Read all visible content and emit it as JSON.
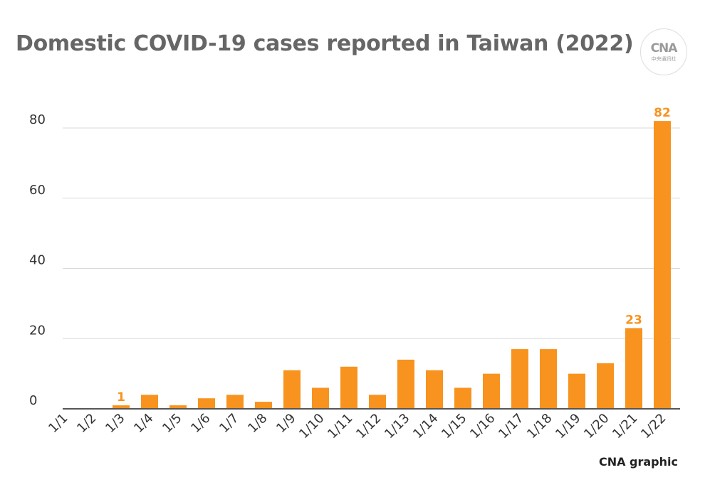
{
  "title": "Domestic COVID-19 cases reported in Taiwan (2022)",
  "logo": {
    "mark": "CNA",
    "sub": "中央通訊社"
  },
  "credit": "CNA graphic",
  "colors": {
    "bar": "#f7931e",
    "label": "#f7931e",
    "grid": "#d9d9d9",
    "axis": "#555555",
    "title": "#666666"
  },
  "chart_data": {
    "type": "bar",
    "title": "Domestic COVID-19 cases reported in Taiwan (2022)",
    "categories": [
      "1/1",
      "1/2",
      "1/3",
      "1/4",
      "1/5",
      "1/6",
      "1/7",
      "1/8",
      "1/9",
      "1/10",
      "1/11",
      "1/12",
      "1/13",
      "1/14",
      "1/15",
      "1/16",
      "1/17",
      "1/18",
      "1/19",
      "1/20",
      "1/21",
      "1/22"
    ],
    "values": [
      0,
      0,
      1,
      4,
      1,
      3,
      4,
      2,
      11,
      6,
      12,
      4,
      14,
      11,
      6,
      10,
      17,
      17,
      10,
      13,
      23,
      82
    ],
    "data_labels": [
      {
        "category": "1/3",
        "text": "1"
      },
      {
        "category": "1/21",
        "text": "23"
      },
      {
        "category": "1/22",
        "text": "82"
      }
    ],
    "ylim": [
      0,
      80
    ],
    "yticks": [
      0,
      20,
      40,
      60,
      80
    ],
    "xlabel": "",
    "ylabel": "",
    "grid": true,
    "legend": "none"
  }
}
